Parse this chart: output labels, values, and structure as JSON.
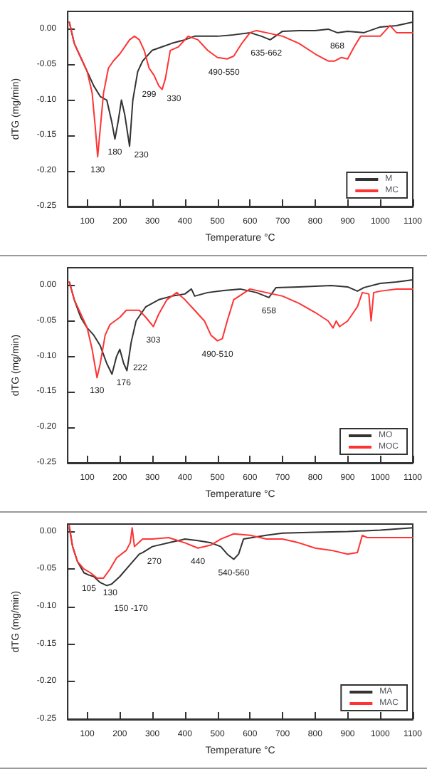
{
  "chart_data": [
    {
      "type": "line",
      "xlabel": "Temperature °C",
      "ylabel": "dTG (mg/min)",
      "xlim": [
        40,
        1100
      ],
      "ylim": [
        -0.25,
        0.025
      ],
      "xticks": [
        100,
        200,
        300,
        400,
        500,
        600,
        700,
        800,
        900,
        1000,
        1100
      ],
      "yticks": [
        {
          "value": -0.25,
          "label": "-0.25"
        },
        {
          "value": -0.2,
          "label": "-0.20"
        },
        {
          "value": -0.15,
          "label": "-0.15"
        },
        {
          "value": -0.1,
          "label": "-0.10"
        },
        {
          "value": -0.05,
          "label": "-0.05"
        },
        {
          "value": 0,
          "label": "0.00"
        }
      ],
      "legend": "bottom right",
      "grid": false,
      "marker": "none",
      "line_style": "solid",
      "series": [
        {
          "name": "M",
          "color": "#333333",
          "x": [
            45,
            60,
            80,
            100,
            120,
            140,
            160,
            175,
            185,
            195,
            205,
            215,
            230,
            240,
            255,
            270,
            299,
            330,
            360,
            400,
            430,
            470,
            500,
            550,
            600,
            635,
            662,
            700,
            750,
            800,
            840,
            868,
            900,
            950,
            1000,
            1050,
            1100
          ],
          "values": [
            0.01,
            -0.02,
            -0.04,
            -0.06,
            -0.08,
            -0.095,
            -0.1,
            -0.13,
            -0.155,
            -0.13,
            -0.1,
            -0.12,
            -0.165,
            -0.1,
            -0.06,
            -0.045,
            -0.03,
            -0.025,
            -0.02,
            -0.015,
            -0.01,
            -0.01,
            -0.01,
            -0.008,
            -0.005,
            -0.01,
            -0.015,
            -0.003,
            -0.002,
            -0.002,
            0,
            -0.005,
            -0.003,
            -0.005,
            0.003,
            0.005,
            0.01
          ]
        },
        {
          "name": "MC",
          "color": "#ff3333",
          "x": [
            45,
            60,
            80,
            100,
            115,
            125,
            132,
            140,
            150,
            165,
            180,
            200,
            215,
            230,
            245,
            260,
            275,
            290,
            305,
            320,
            330,
            340,
            355,
            380,
            410,
            440,
            470,
            500,
            530,
            550,
            575,
            600,
            620,
            650,
            700,
            750,
            800,
            840,
            860,
            880,
            900,
            920,
            940,
            970,
            1000,
            1030,
            1050,
            1100
          ],
          "values": [
            0.01,
            -0.02,
            -0.04,
            -0.06,
            -0.09,
            -0.14,
            -0.18,
            -0.14,
            -0.09,
            -0.055,
            -0.045,
            -0.035,
            -0.025,
            -0.015,
            -0.01,
            -0.015,
            -0.03,
            -0.055,
            -0.065,
            -0.08,
            -0.085,
            -0.07,
            -0.03,
            -0.025,
            -0.01,
            -0.015,
            -0.03,
            -0.04,
            -0.042,
            -0.038,
            -0.02,
            -0.005,
            -0.002,
            -0.005,
            -0.01,
            -0.02,
            -0.035,
            -0.045,
            -0.045,
            -0.04,
            -0.042,
            -0.025,
            -0.01,
            -0.01,
            -0.01,
            0.005,
            -0.005,
            -0.005
          ]
        }
      ],
      "annotations": [
        {
          "text": "130",
          "x": 132,
          "y": -0.18
        },
        {
          "text": "180",
          "x": 185,
          "y": -0.155
        },
        {
          "text": "230",
          "x": 230,
          "y": -0.165
        },
        {
          "text": "299",
          "x": 290,
          "y": -0.055
        },
        {
          "text": "330",
          "x": 330,
          "y": -0.085
        },
        {
          "text": "490-550",
          "x": 520,
          "y": -0.042
        },
        {
          "text": "635-662",
          "x": 650,
          "y": -0.015
        },
        {
          "text": "868",
          "x": 868,
          "y": -0.005
        }
      ]
    },
    {
      "type": "line",
      "xlabel": "Temperature °C",
      "ylabel": "dTG (mg/min)",
      "xlim": [
        40,
        1100
      ],
      "ylim": [
        -0.25,
        0.025
      ],
      "xticks": [
        100,
        200,
        300,
        400,
        500,
        600,
        700,
        800,
        900,
        1000,
        1100
      ],
      "yticks": [
        {
          "value": -0.25,
          "label": "-0.25"
        },
        {
          "value": -0.2,
          "label": "-0.20"
        },
        {
          "value": -0.15,
          "label": "-0.15"
        },
        {
          "value": -0.1,
          "label": "-0.10"
        },
        {
          "value": -0.05,
          "label": "-0.05"
        },
        {
          "value": 0,
          "label": "0.00"
        }
      ],
      "legend": "bottom right",
      "grid": false,
      "marker": "none",
      "line_style": "solid",
      "series": [
        {
          "name": "MO",
          "color": "#333333",
          "x": [
            45,
            60,
            80,
            100,
            120,
            140,
            160,
            176,
            190,
            200,
            212,
            222,
            235,
            250,
            280,
            320,
            360,
            400,
            420,
            430,
            470,
            520,
            570,
            620,
            658,
            680,
            750,
            850,
            900,
            930,
            950,
            1000,
            1050,
            1100
          ],
          "values": [
            0.005,
            -0.02,
            -0.045,
            -0.06,
            -0.07,
            -0.085,
            -0.11,
            -0.125,
            -0.1,
            -0.09,
            -0.11,
            -0.12,
            -0.08,
            -0.05,
            -0.03,
            -0.02,
            -0.015,
            -0.012,
            -0.005,
            -0.015,
            -0.01,
            -0.007,
            -0.005,
            -0.01,
            -0.017,
            -0.003,
            -0.002,
            0,
            -0.002,
            -0.008,
            -0.003,
            0.003,
            0.005,
            0.008
          ]
        },
        {
          "name": "MOC",
          "color": "#ff3333",
          "x": [
            45,
            60,
            80,
            100,
            115,
            130,
            140,
            155,
            170,
            200,
            220,
            240,
            260,
            280,
            303,
            320,
            345,
            375,
            400,
            430,
            460,
            480,
            500,
            515,
            530,
            550,
            600,
            650,
            700,
            750,
            800,
            840,
            855,
            865,
            875,
            900,
            930,
            945,
            965,
            972,
            980,
            1000,
            1050,
            1100
          ],
          "values": [
            0.005,
            -0.02,
            -0.04,
            -0.06,
            -0.09,
            -0.13,
            -0.11,
            -0.07,
            -0.055,
            -0.045,
            -0.035,
            -0.035,
            -0.035,
            -0.045,
            -0.058,
            -0.04,
            -0.02,
            -0.01,
            -0.02,
            -0.035,
            -0.05,
            -0.07,
            -0.078,
            -0.075,
            -0.05,
            -0.02,
            -0.005,
            -0.01,
            -0.015,
            -0.025,
            -0.038,
            -0.05,
            -0.06,
            -0.05,
            -0.058,
            -0.05,
            -0.03,
            -0.01,
            -0.012,
            -0.05,
            -0.01,
            -0.008,
            -0.005,
            -0.005
          ]
        }
      ],
      "annotations": [
        {
          "text": "130",
          "x": 130,
          "y": -0.13
        },
        {
          "text": "176",
          "x": 176,
          "y": -0.125
        },
        {
          "text": "222",
          "x": 222,
          "y": -0.12
        },
        {
          "text": "303",
          "x": 303,
          "y": -0.058
        },
        {
          "text": "490-510",
          "x": 500,
          "y": -0.078
        },
        {
          "text": "658",
          "x": 658,
          "y": -0.017
        }
      ]
    },
    {
      "type": "line",
      "xlabel": "Temperature °C",
      "ylabel": "dTG (mg/min)",
      "xlim": [
        40,
        1100
      ],
      "ylim": [
        -0.25,
        0.01
      ],
      "xticks": [
        100,
        200,
        300,
        400,
        500,
        600,
        700,
        800,
        900,
        1000,
        1100
      ],
      "yticks": [
        {
          "value": -0.25,
          "label": "-0.25"
        },
        {
          "value": -0.2,
          "label": "-0.20"
        },
        {
          "value": -0.15,
          "label": "-0.15"
        },
        {
          "value": -0.1,
          "label": "-0.10"
        },
        {
          "value": -0.05,
          "label": "-0.05"
        },
        {
          "value": 0,
          "label": "0.00"
        }
      ],
      "legend": "bottom right",
      "grid": false,
      "marker": "none",
      "line_style": "solid",
      "series": [
        {
          "name": "MA",
          "color": "#333333",
          "x": [
            45,
            55,
            70,
            90,
            105,
            120,
            140,
            160,
            175,
            200,
            230,
            260,
            270,
            300,
            350,
            400,
            440,
            480,
            510,
            530,
            550,
            565,
            580,
            650,
            700,
            800,
            900,
            1000,
            1100
          ],
          "values": [
            0.005,
            -0.02,
            -0.04,
            -0.055,
            -0.058,
            -0.06,
            -0.068,
            -0.072,
            -0.07,
            -0.06,
            -0.045,
            -0.03,
            -0.028,
            -0.02,
            -0.015,
            -0.01,
            -0.012,
            -0.015,
            -0.02,
            -0.03,
            -0.037,
            -0.03,
            -0.01,
            -0.005,
            -0.002,
            -0.001,
            0,
            0.002,
            0.005
          ]
        },
        {
          "name": "MAC",
          "color": "#ff3333",
          "x": [
            45,
            55,
            70,
            90,
            110,
            130,
            150,
            170,
            190,
            220,
            232,
            238,
            245,
            270,
            300,
            350,
            400,
            440,
            480,
            510,
            550,
            600,
            650,
            700,
            750,
            800,
            850,
            900,
            930,
            945,
            960,
            1000,
            1100
          ],
          "values": [
            0.008,
            -0.02,
            -0.04,
            -0.05,
            -0.055,
            -0.062,
            -0.062,
            -0.05,
            -0.035,
            -0.025,
            -0.015,
            0.005,
            -0.02,
            -0.01,
            -0.01,
            -0.008,
            -0.015,
            -0.022,
            -0.018,
            -0.01,
            -0.003,
            -0.005,
            -0.01,
            -0.01,
            -0.015,
            -0.022,
            -0.025,
            -0.03,
            -0.028,
            -0.005,
            -0.008,
            -0.008,
            -0.008
          ]
        }
      ],
      "annotations": [
        {
          "text": "105",
          "x": 105,
          "y": -0.058
        },
        {
          "text": "130",
          "x": 130,
          "y": -0.062
        },
        {
          "text": "150 -170",
          "x": 160,
          "y": -0.072
        },
        {
          "text": "270",
          "x": 270,
          "y": -0.028
        },
        {
          "text": "440",
          "x": 440,
          "y": -0.022
        },
        {
          "text": "540-560",
          "x": 550,
          "y": -0.037
        }
      ]
    }
  ]
}
